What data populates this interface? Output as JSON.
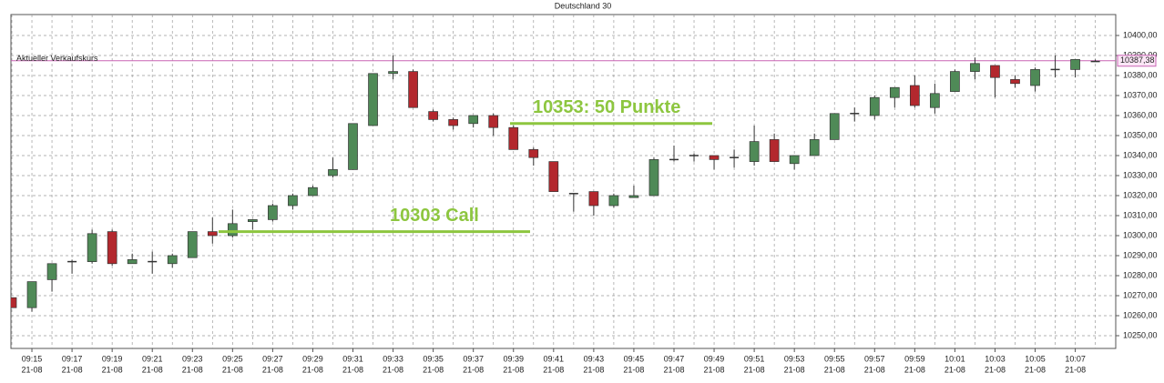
{
  "chart_data": {
    "type": "candlestick",
    "title": "Deutschland 30",
    "categories": [
      null,
      "09:15",
      null,
      "09:17",
      null,
      "09:19",
      null,
      "09:21",
      null,
      "09:23",
      null,
      "09:25",
      null,
      "09:27",
      null,
      "09:29",
      null,
      "09:31",
      null,
      "09:33",
      null,
      "09:35",
      null,
      "09:37",
      null,
      "09:39",
      null,
      "09:41",
      null,
      "09:43",
      null,
      "09:45",
      null,
      "09:47",
      null,
      "09:49",
      null,
      "09:51",
      null,
      "09:53",
      null,
      "09:55",
      null,
      "09:57",
      null,
      "09:59",
      null,
      "10:01",
      null,
      "10:03",
      null,
      "10:05",
      null,
      "10:07",
      null
    ],
    "date_label": "21-08",
    "open": [
      10269,
      10264,
      10278,
      10287,
      10287,
      10302,
      10286,
      10287,
      10286,
      10289,
      10302,
      10300,
      10307,
      10308,
      10315,
      10320,
      10330,
      10333,
      10355,
      10381,
      10382,
      10362,
      10358,
      10356,
      10360,
      10354,
      10343,
      10337,
      10321,
      10322,
      10315,
      10319,
      10320,
      10338,
      10340,
      10340,
      10339,
      10337,
      10348,
      10336,
      10340,
      10348,
      10361,
      10360,
      10369,
      10375,
      10364,
      10372,
      10382,
      10385,
      10378,
      10375,
      10383,
      10383,
      10387
    ],
    "high": [
      10269,
      10277,
      10286,
      10288,
      10303,
      10303,
      10291,
      10292,
      10291,
      10302,
      10309,
      10313,
      10308,
      10316,
      10321,
      10325,
      10339,
      10356,
      10381,
      10390,
      10383,
      10363,
      10359,
      10360,
      10361,
      10355,
      10344,
      10337,
      10321,
      10322,
      10321,
      10325,
      10339,
      10345,
      10341,
      10340,
      10343,
      10355,
      10351,
      10340,
      10351,
      10361,
      10364,
      10370,
      10374,
      10380,
      10376,
      10383,
      10389,
      10385,
      10380,
      10384,
      10390,
      10388,
      10388
    ],
    "low": [
      10264,
      10262,
      10272,
      10281,
      10286,
      10285,
      10286,
      10281,
      10284,
      10289,
      10296,
      10299,
      10303,
      10307,
      10313,
      10320,
      10329,
      10333,
      10355,
      10378,
      10364,
      10357,
      10353,
      10354,
      10350,
      10343,
      10335,
      10322,
      10312,
      10310,
      10314,
      10319,
      10320,
      10337,
      10337,
      10333,
      10334,
      10335,
      10337,
      10333,
      10340,
      10348,
      10357,
      10358,
      10364,
      10364,
      10361,
      10372,
      10378,
      10369,
      10374,
      10372,
      10379,
      10379,
      10387
    ],
    "close": [
      10264,
      10277,
      10286,
      10287,
      10301,
      10286,
      10288,
      10287,
      10290,
      10302,
      10300,
      10306,
      10308,
      10315,
      10320,
      10324,
      10333,
      10356,
      10381,
      10382,
      10364,
      10358,
      10355,
      10360,
      10354,
      10343,
      10339,
      10322,
      10321,
      10315,
      10320,
      10320,
      10338,
      10338,
      10340,
      10338,
      10339,
      10347,
      10337,
      10340,
      10348,
      10361,
      10361,
      10369,
      10374,
      10365,
      10371,
      10382,
      10386,
      10379,
      10376,
      10383,
      10383,
      10388,
      10387
    ],
    "up_color": "#4f8a57",
    "down_color": "#b3282e",
    "ylim": [
      10243,
      10411
    ],
    "yticks": [
      {
        "value": 10250,
        "label": "10250,00"
      },
      {
        "value": 10260,
        "label": "10260,00"
      },
      {
        "value": 10270,
        "label": "10270,00"
      },
      {
        "value": 10280,
        "label": "10280,00"
      },
      {
        "value": 10290,
        "label": "10290,00"
      },
      {
        "value": 10300,
        "label": "10300,00"
      },
      {
        "value": 10310,
        "label": "10310,00"
      },
      {
        "value": 10320,
        "label": "10320,00"
      },
      {
        "value": 10330,
        "label": "10330,00"
      },
      {
        "value": 10340,
        "label": "10340,00"
      },
      {
        "value": 10350,
        "label": "10350,00"
      },
      {
        "value": 10360,
        "label": "10360,00"
      },
      {
        "value": 10370,
        "label": "10370,00"
      },
      {
        "value": 10380,
        "label": "10380,00"
      },
      {
        "value": 10390,
        "label": "10390,00"
      },
      {
        "value": 10400,
        "label": "10400,00"
      }
    ],
    "grid": true,
    "current_price": {
      "name": "Aktueller Verkaufskurs",
      "value": 10387.38,
      "label": "10387,38",
      "color": "#c864b4"
    },
    "annotations": [
      {
        "text": "10353: 50 Punkte",
        "value": 10356,
        "color": "#8dc63f"
      },
      {
        "text": "10303 Call",
        "value": 10302,
        "color": "#8dc63f"
      }
    ]
  }
}
